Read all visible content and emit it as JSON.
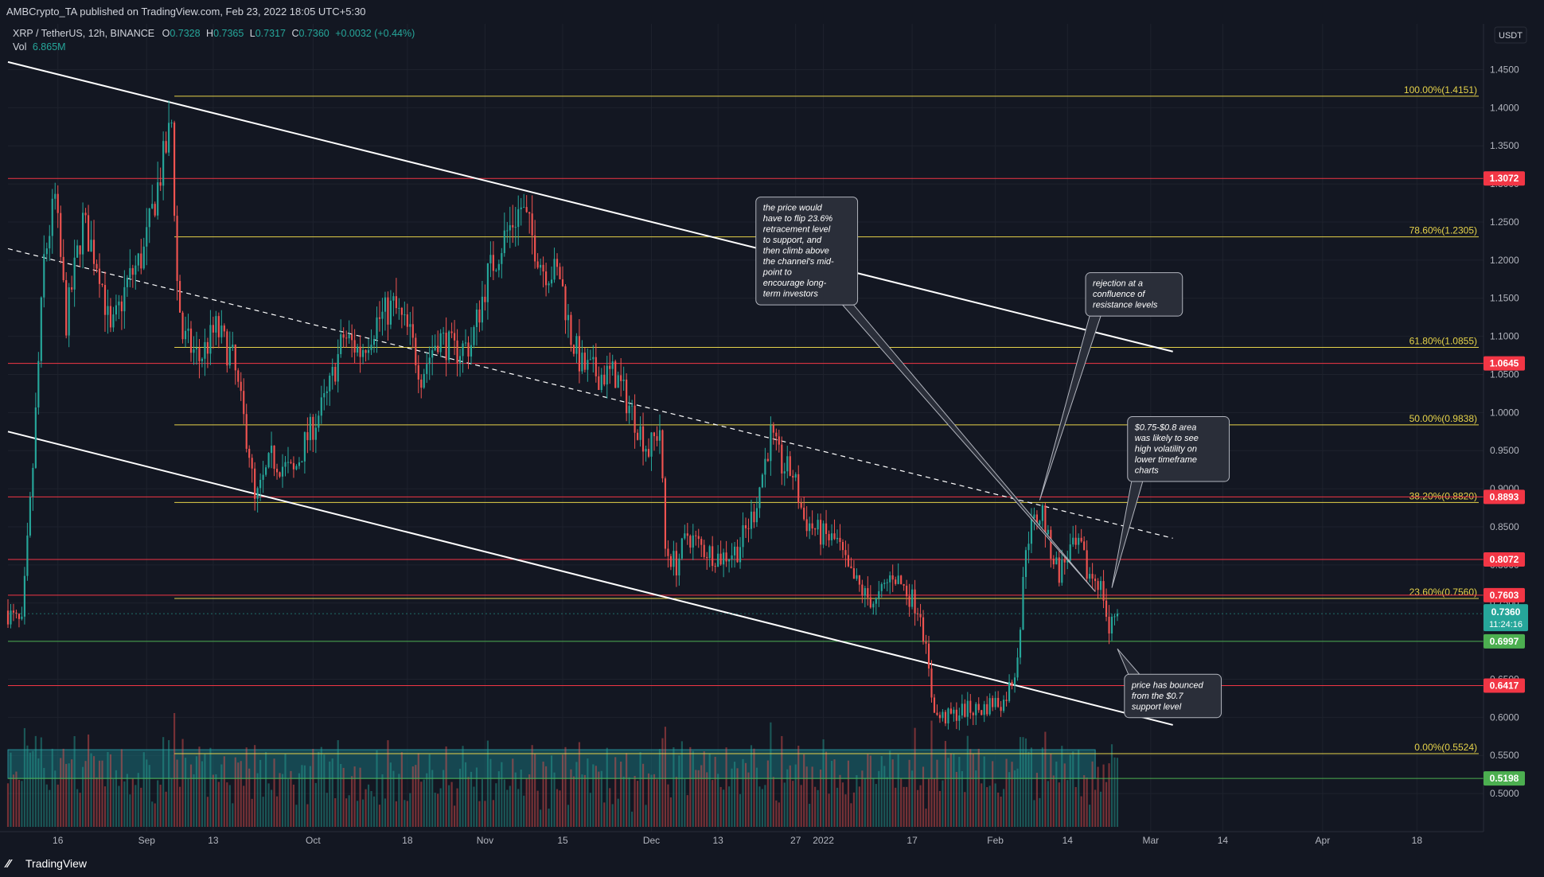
{
  "header": {
    "publisher": "AMBCrypto_TA published on TradingView.com, Feb 23, 2022 18:05 UTC+5:30",
    "symbol": "XRP / TetherUS, 12h, BINANCE",
    "o_label": "O",
    "o_value": "0.7328",
    "h_label": "H",
    "h_value": "0.7365",
    "l_label": "L",
    "l_value": "0.7317",
    "c_label": "C",
    "c_value": "0.7360",
    "change": "+0.0032 (+0.44%)",
    "vol_label": "Vol",
    "vol_value": "6.865M"
  },
  "currency": "USDT",
  "footer": {
    "brand": "TradingView"
  },
  "colors": {
    "bg": "#131722",
    "up": "#26a69a",
    "down": "#ef5350",
    "fib": "#e6d34a",
    "red_level": "#f23645",
    "green_level": "#4caf50",
    "grid": "#1e222d",
    "text": "#b2b5be"
  },
  "chart_data": {
    "type": "candlestick",
    "symbol": "XRP / TetherUS",
    "timeframe": "12h",
    "ylim": [
      0.45,
      1.51
    ],
    "y_ticks": [
      0.5,
      0.55,
      0.6,
      0.65,
      0.7,
      0.75,
      0.8,
      0.85,
      0.9,
      0.95,
      1.0,
      1.05,
      1.1,
      1.15,
      1.2,
      1.25,
      1.3,
      1.35,
      1.4,
      1.45
    ],
    "y_tick_labels": [
      "0.5000",
      "0.5500",
      "0.6000",
      "0.6500",
      "0.7000",
      "0.7500",
      "0.8000",
      "0.8500",
      "0.9000",
      "0.9500",
      "1.0000",
      "1.0500",
      "1.1000",
      "1.1500",
      "1.2000",
      "1.2500",
      "1.3000",
      "1.3500",
      "1.4000",
      "1.4500"
    ],
    "x_start": "2021-08-07",
    "x_end": "2022-04-30",
    "x_ticks": [
      {
        "date": "2021-08-16",
        "label": "16"
      },
      {
        "date": "2021-09-01",
        "label": "Sep"
      },
      {
        "date": "2021-09-13",
        "label": "13"
      },
      {
        "date": "2021-10-01",
        "label": "Oct"
      },
      {
        "date": "2021-10-18",
        "label": "18"
      },
      {
        "date": "2021-11-01",
        "label": "Nov"
      },
      {
        "date": "2021-11-15",
        "label": "15"
      },
      {
        "date": "2021-12-01",
        "label": "Dec"
      },
      {
        "date": "2021-12-13",
        "label": "13"
      },
      {
        "date": "2021-12-27",
        "label": "27"
      },
      {
        "date": "2022-01-01",
        "label": "2022"
      },
      {
        "date": "2022-01-17",
        "label": "17"
      },
      {
        "date": "2022-02-01",
        "label": "Feb"
      },
      {
        "date": "2022-02-14",
        "label": "14"
      },
      {
        "date": "2022-03-01",
        "label": "Mar"
      },
      {
        "date": "2022-03-14",
        "label": "14"
      },
      {
        "date": "2022-04-01",
        "label": "Apr"
      },
      {
        "date": "2022-04-18",
        "label": "18"
      }
    ],
    "price_path": [
      {
        "date": "2021-08-07",
        "price": 0.74
      },
      {
        "date": "2021-08-10",
        "price": 0.72
      },
      {
        "date": "2021-08-12",
        "price": 0.93
      },
      {
        "date": "2021-08-14",
        "price": 1.2
      },
      {
        "date": "2021-08-16",
        "price": 1.28
      },
      {
        "date": "2021-08-18",
        "price": 1.12
      },
      {
        "date": "2021-08-21",
        "price": 1.25
      },
      {
        "date": "2021-08-24",
        "price": 1.19
      },
      {
        "date": "2021-08-26",
        "price": 1.1
      },
      {
        "date": "2021-08-29",
        "price": 1.17
      },
      {
        "date": "2021-09-01",
        "price": 1.21
      },
      {
        "date": "2021-09-03",
        "price": 1.28
      },
      {
        "date": "2021-09-06",
        "price": 1.38
      },
      {
        "date": "2021-09-07",
        "price": 1.17
      },
      {
        "date": "2021-09-08",
        "price": 1.1
      },
      {
        "date": "2021-09-11",
        "price": 1.07
      },
      {
        "date": "2021-09-14",
        "price": 1.11
      },
      {
        "date": "2021-09-17",
        "price": 1.07
      },
      {
        "date": "2021-09-20",
        "price": 0.95
      },
      {
        "date": "2021-09-21",
        "price": 0.88
      },
      {
        "date": "2021-09-24",
        "price": 0.94
      },
      {
        "date": "2021-09-28",
        "price": 0.92
      },
      {
        "date": "2021-09-30",
        "price": 0.96
      },
      {
        "date": "2021-10-04",
        "price": 1.02
      },
      {
        "date": "2021-10-07",
        "price": 1.1
      },
      {
        "date": "2021-10-10",
        "price": 1.08
      },
      {
        "date": "2021-10-13",
        "price": 1.12
      },
      {
        "date": "2021-10-16",
        "price": 1.14
      },
      {
        "date": "2021-10-19",
        "price": 1.1
      },
      {
        "date": "2021-10-21",
        "price": 1.05
      },
      {
        "date": "2021-10-24",
        "price": 1.1
      },
      {
        "date": "2021-10-27",
        "price": 1.08
      },
      {
        "date": "2021-10-30",
        "price": 1.09
      },
      {
        "date": "2021-11-02",
        "price": 1.18
      },
      {
        "date": "2021-11-05",
        "price": 1.23
      },
      {
        "date": "2021-11-08",
        "price": 1.27
      },
      {
        "date": "2021-11-10",
        "price": 1.23
      },
      {
        "date": "2021-11-12",
        "price": 1.19
      },
      {
        "date": "2021-11-15",
        "price": 1.18
      },
      {
        "date": "2021-11-17",
        "price": 1.1
      },
      {
        "date": "2021-11-19",
        "price": 1.06
      },
      {
        "date": "2021-11-22",
        "price": 1.05
      },
      {
        "date": "2021-11-25",
        "price": 1.05
      },
      {
        "date": "2021-11-28",
        "price": 1.0
      },
      {
        "date": "2021-12-01",
        "price": 0.95
      },
      {
        "date": "2021-12-03",
        "price": 0.98
      },
      {
        "date": "2021-12-04",
        "price": 0.82
      },
      {
        "date": "2021-12-06",
        "price": 0.8
      },
      {
        "date": "2021-12-08",
        "price": 0.84
      },
      {
        "date": "2021-12-11",
        "price": 0.82
      },
      {
        "date": "2021-12-14",
        "price": 0.81
      },
      {
        "date": "2021-12-17",
        "price": 0.82
      },
      {
        "date": "2021-12-20",
        "price": 0.87
      },
      {
        "date": "2021-12-23",
        "price": 0.97
      },
      {
        "date": "2021-12-25",
        "price": 0.93
      },
      {
        "date": "2021-12-27",
        "price": 0.92
      },
      {
        "date": "2021-12-29",
        "price": 0.86
      },
      {
        "date": "2022-01-01",
        "price": 0.84
      },
      {
        "date": "2022-01-04",
        "price": 0.83
      },
      {
        "date": "2022-01-06",
        "price": 0.79
      },
      {
        "date": "2022-01-09",
        "price": 0.76
      },
      {
        "date": "2022-01-11",
        "price": 0.75
      },
      {
        "date": "2022-01-14",
        "price": 0.79
      },
      {
        "date": "2022-01-17",
        "price": 0.76
      },
      {
        "date": "2022-01-19",
        "price": 0.74
      },
      {
        "date": "2022-01-21",
        "price": 0.63
      },
      {
        "date": "2022-01-22",
        "price": 0.6
      },
      {
        "date": "2022-01-24",
        "price": 0.6
      },
      {
        "date": "2022-01-27",
        "price": 0.61
      },
      {
        "date": "2022-01-30",
        "price": 0.61
      },
      {
        "date": "2022-02-01",
        "price": 0.62
      },
      {
        "date": "2022-02-03",
        "price": 0.62
      },
      {
        "date": "2022-02-05",
        "price": 0.66
      },
      {
        "date": "2022-02-06",
        "price": 0.72
      },
      {
        "date": "2022-02-07",
        "price": 0.83
      },
      {
        "date": "2022-02-08",
        "price": 0.85
      },
      {
        "date": "2022-02-10",
        "price": 0.87
      },
      {
        "date": "2022-02-11",
        "price": 0.83
      },
      {
        "date": "2022-02-13",
        "price": 0.79
      },
      {
        "date": "2022-02-15",
        "price": 0.82
      },
      {
        "date": "2022-02-17",
        "price": 0.82
      },
      {
        "date": "2022-02-18",
        "price": 0.79
      },
      {
        "date": "2022-02-20",
        "price": 0.78
      },
      {
        "date": "2022-02-21",
        "price": 0.76
      },
      {
        "date": "2022-02-22",
        "price": 0.71
      },
      {
        "date": "2022-02-23",
        "price": 0.736
      }
    ],
    "horizontal_levels": [
      {
        "kind": "fib",
        "label": "100.00%(1.4151)",
        "price": 1.4151,
        "start": "2021-09-06"
      },
      {
        "kind": "fib",
        "label": "78.60%(1.2305)",
        "price": 1.2305,
        "start": "2021-09-06"
      },
      {
        "kind": "fib",
        "label": "61.80%(1.0855)",
        "price": 1.0855,
        "start": "2021-09-06"
      },
      {
        "kind": "fib",
        "label": "50.00%(0.9838)",
        "price": 0.9838,
        "start": "2021-09-06"
      },
      {
        "kind": "fib",
        "label": "38.20%(0.8820)",
        "price": 0.882,
        "start": "2021-09-06"
      },
      {
        "kind": "fib",
        "label": "23.60%(0.7560)",
        "price": 0.756,
        "start": "2021-09-06"
      },
      {
        "kind": "fib",
        "label": "0.00%(0.5524)",
        "price": 0.5524,
        "start": "2021-09-06"
      },
      {
        "kind": "red",
        "label": "1.3072",
        "price": 1.3072
      },
      {
        "kind": "red",
        "label": "1.0645",
        "price": 1.0645
      },
      {
        "kind": "red",
        "label": "0.8893",
        "price": 0.8893
      },
      {
        "kind": "red",
        "label": "0.8072",
        "price": 0.8072
      },
      {
        "kind": "red",
        "label": "0.7603",
        "price": 0.7603
      },
      {
        "kind": "red",
        "label": "0.6417",
        "price": 0.6417
      },
      {
        "kind": "green",
        "label": "0.6997",
        "price": 0.6997
      },
      {
        "kind": "green",
        "label": "0.5198",
        "price": 0.5198
      }
    ],
    "current_price": {
      "label": "0.7360",
      "countdown": "11:24:16",
      "price": 0.736
    },
    "channel": {
      "upper": [
        {
          "date": "2021-08-07",
          "price": 1.46
        },
        {
          "date": "2022-03-05",
          "price": 1.08
        }
      ],
      "lower": [
        {
          "date": "2021-08-07",
          "price": 0.975
        },
        {
          "date": "2022-03-05",
          "price": 0.59
        }
      ],
      "mid": [
        {
          "date": "2021-08-07",
          "price": 1.215
        },
        {
          "date": "2022-03-05",
          "price": 0.835
        }
      ]
    },
    "demand_zone": {
      "start": "2021-08-07",
      "end": "2022-02-19",
      "low": 0.5198,
      "high": 0.5575
    },
    "annotations": [
      {
        "text": "the price would have to flip 23.6% retracement level to support, and then climb above the channel's mid-point to encourage long-term investors",
        "lines": [
          "the price would",
          "have to flip 23.6%",
          "retracement level",
          "to support, and",
          "then climb above",
          "the channel's mid-",
          "point to",
          "encourage long-",
          "term investors"
        ],
        "box_date": "2021-12-29",
        "box_price": 1.212,
        "pointer": {
          "date": "2022-02-19",
          "price": 0.765
        }
      },
      {
        "text": "rejection at a confluence of resistance levels",
        "lines": [
          "rejection at a",
          "confluence of",
          "resistance levels"
        ],
        "box_date": "2022-02-26",
        "box_price": 1.155,
        "pointer": {
          "date": "2022-02-09",
          "price": 0.885
        }
      },
      {
        "text": "$0.75-$0.8 area was likely to see high volatility on lower timeframe charts",
        "lines": [
          "$0.75-$0.8 area",
          "was likely to see",
          "high volatility on",
          "lower timeframe",
          "charts"
        ],
        "box_date": "2022-03-06",
        "box_price": 0.952,
        "pointer": {
          "date": "2022-02-22",
          "price": 0.77
        }
      },
      {
        "text": "price has bounced from the $0.7 support level",
        "lines": [
          "price has bounced",
          "from the $0.7",
          "support level"
        ],
        "box_date": "2022-03-05",
        "box_price": 0.628,
        "pointer": {
          "date": "2022-02-23",
          "price": 0.69
        }
      }
    ]
  }
}
